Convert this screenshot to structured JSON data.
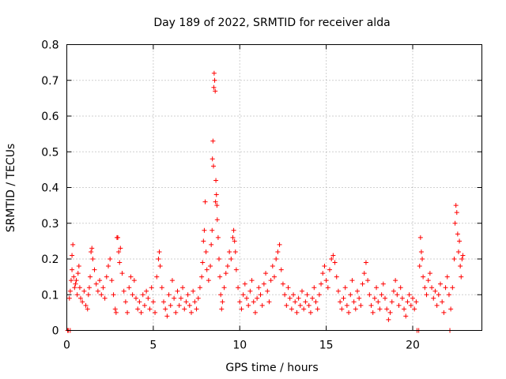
{
  "chart_data": {
    "type": "scatter",
    "title": "Day 189 of 2022, SRMTID for receiver alda",
    "xlabel": "GPS time / hours",
    "ylabel": "SRMTID / TECUs",
    "xlim": [
      0,
      24
    ],
    "ylim": [
      0,
      0.8
    ],
    "xticks": [
      0,
      5,
      10,
      15,
      20
    ],
    "yticks": [
      0,
      0.1,
      0.2,
      0.3,
      0.4,
      0.5,
      0.6,
      0.7,
      0.8
    ],
    "xtick_labels": [
      "0",
      "5",
      "10",
      "15",
      "20"
    ],
    "ytick_labels": [
      "0",
      "0.1",
      "0.2",
      "0.3",
      "0.4",
      "0.5",
      "0.6",
      "0.7",
      "0.8"
    ],
    "grid": true,
    "marker": "+",
    "color": "#ff0000",
    "series": [
      {
        "name": "SRMTID",
        "points": [
          [
            0.05,
            0.0
          ],
          [
            0.1,
            0.0
          ],
          [
            0.2,
            0.0
          ],
          [
            0.15,
            0.09
          ],
          [
            0.2,
            0.11
          ],
          [
            0.25,
            0.14
          ],
          [
            0.3,
            0.17
          ],
          [
            0.3,
            0.21
          ],
          [
            0.35,
            0.24
          ],
          [
            0.4,
            0.15
          ],
          [
            0.45,
            0.12
          ],
          [
            0.5,
            0.13
          ],
          [
            0.55,
            0.14
          ],
          [
            0.6,
            0.1
          ],
          [
            0.65,
            0.16
          ],
          [
            0.7,
            0.18
          ],
          [
            0.75,
            0.12
          ],
          [
            0.8,
            0.09
          ],
          [
            0.9,
            0.08
          ],
          [
            1.0,
            0.11
          ],
          [
            1.1,
            0.07
          ],
          [
            1.2,
            0.06
          ],
          [
            1.25,
            0.1
          ],
          [
            1.3,
            0.12
          ],
          [
            1.35,
            0.15
          ],
          [
            1.4,
            0.22
          ],
          [
            1.45,
            0.23
          ],
          [
            1.5,
            0.2
          ],
          [
            1.6,
            0.17
          ],
          [
            1.7,
            0.13
          ],
          [
            1.8,
            0.11
          ],
          [
            1.9,
            0.14
          ],
          [
            2.0,
            0.1
          ],
          [
            2.1,
            0.12
          ],
          [
            2.2,
            0.09
          ],
          [
            2.3,
            0.15
          ],
          [
            2.4,
            0.18
          ],
          [
            2.5,
            0.2
          ],
          [
            2.6,
            0.14
          ],
          [
            2.7,
            0.1
          ],
          [
            2.8,
            0.06
          ],
          [
            2.85,
            0.05
          ],
          [
            2.9,
            0.26
          ],
          [
            2.95,
            0.26
          ],
          [
            3.0,
            0.22
          ],
          [
            3.05,
            0.19
          ],
          [
            3.1,
            0.23
          ],
          [
            3.2,
            0.16
          ],
          [
            3.3,
            0.11
          ],
          [
            3.4,
            0.08
          ],
          [
            3.5,
            0.05
          ],
          [
            3.6,
            0.12
          ],
          [
            3.7,
            0.15
          ],
          [
            3.8,
            0.1
          ],
          [
            3.9,
            0.14
          ],
          [
            4.0,
            0.09
          ],
          [
            4.1,
            0.06
          ],
          [
            4.2,
            0.08
          ],
          [
            4.3,
            0.05
          ],
          [
            4.4,
            0.1
          ],
          [
            4.5,
            0.07
          ],
          [
            4.6,
            0.11
          ],
          [
            4.7,
            0.09
          ],
          [
            4.8,
            0.06
          ],
          [
            4.9,
            0.12
          ],
          [
            5.0,
            0.08
          ],
          [
            5.1,
            0.05
          ],
          [
            5.2,
            0.15
          ],
          [
            5.3,
            0.2
          ],
          [
            5.35,
            0.22
          ],
          [
            5.4,
            0.18
          ],
          [
            5.5,
            0.12
          ],
          [
            5.6,
            0.08
          ],
          [
            5.7,
            0.06
          ],
          [
            5.8,
            0.04
          ],
          [
            5.9,
            0.1
          ],
          [
            6.0,
            0.07
          ],
          [
            6.1,
            0.14
          ],
          [
            6.2,
            0.09
          ],
          [
            6.3,
            0.05
          ],
          [
            6.4,
            0.11
          ],
          [
            6.5,
            0.07
          ],
          [
            6.6,
            0.09
          ],
          [
            6.7,
            0.12
          ],
          [
            6.8,
            0.06
          ],
          [
            6.9,
            0.08
          ],
          [
            7.0,
            0.1
          ],
          [
            7.1,
            0.07
          ],
          [
            7.2,
            0.05
          ],
          [
            7.3,
            0.11
          ],
          [
            7.4,
            0.08
          ],
          [
            7.5,
            0.06
          ],
          [
            7.6,
            0.09
          ],
          [
            7.7,
            0.12
          ],
          [
            7.8,
            0.15
          ],
          [
            7.85,
            0.19
          ],
          [
            7.9,
            0.25
          ],
          [
            7.95,
            0.28
          ],
          [
            8.0,
            0.36
          ],
          [
            8.05,
            0.22
          ],
          [
            8.1,
            0.17
          ],
          [
            8.2,
            0.14
          ],
          [
            8.3,
            0.18
          ],
          [
            8.35,
            0.24
          ],
          [
            8.4,
            0.28
          ],
          [
            8.42,
            0.48
          ],
          [
            8.45,
            0.53
          ],
          [
            8.48,
            0.46
          ],
          [
            8.5,
            0.68
          ],
          [
            8.52,
            0.72
          ],
          [
            8.55,
            0.7
          ],
          [
            8.58,
            0.67
          ],
          [
            8.6,
            0.36
          ],
          [
            8.62,
            0.42
          ],
          [
            8.65,
            0.38
          ],
          [
            8.68,
            0.35
          ],
          [
            8.7,
            0.31
          ],
          [
            8.75,
            0.26
          ],
          [
            8.8,
            0.2
          ],
          [
            8.85,
            0.15
          ],
          [
            8.9,
            0.1
          ],
          [
            8.95,
            0.06
          ],
          [
            9.0,
            0.08
          ],
          [
            9.1,
            0.12
          ],
          [
            9.2,
            0.16
          ],
          [
            9.3,
            0.18
          ],
          [
            9.4,
            0.22
          ],
          [
            9.5,
            0.2
          ],
          [
            9.6,
            0.26
          ],
          [
            9.65,
            0.28
          ],
          [
            9.7,
            0.25
          ],
          [
            9.75,
            0.22
          ],
          [
            9.8,
            0.17
          ],
          [
            9.9,
            0.12
          ],
          [
            10.0,
            0.08
          ],
          [
            10.1,
            0.06
          ],
          [
            10.2,
            0.1
          ],
          [
            10.3,
            0.13
          ],
          [
            10.4,
            0.09
          ],
          [
            10.5,
            0.07
          ],
          [
            10.6,
            0.11
          ],
          [
            10.7,
            0.14
          ],
          [
            10.8,
            0.08
          ],
          [
            10.9,
            0.05
          ],
          [
            11.0,
            0.09
          ],
          [
            11.1,
            0.12
          ],
          [
            11.2,
            0.1
          ],
          [
            11.3,
            0.07
          ],
          [
            11.4,
            0.13
          ],
          [
            11.5,
            0.16
          ],
          [
            11.6,
            0.11
          ],
          [
            11.7,
            0.08
          ],
          [
            11.8,
            0.14
          ],
          [
            11.9,
            0.18
          ],
          [
            12.0,
            0.15
          ],
          [
            12.1,
            0.2
          ],
          [
            12.2,
            0.22
          ],
          [
            12.3,
            0.24
          ],
          [
            12.4,
            0.17
          ],
          [
            12.5,
            0.13
          ],
          [
            12.6,
            0.1
          ],
          [
            12.7,
            0.07
          ],
          [
            12.8,
            0.12
          ],
          [
            12.9,
            0.09
          ],
          [
            13.0,
            0.06
          ],
          [
            13.1,
            0.1
          ],
          [
            13.2,
            0.08
          ],
          [
            13.3,
            0.05
          ],
          [
            13.4,
            0.09
          ],
          [
            13.5,
            0.07
          ],
          [
            13.6,
            0.11
          ],
          [
            13.7,
            0.06
          ],
          [
            13.8,
            0.08
          ],
          [
            13.9,
            0.1
          ],
          [
            14.0,
            0.07
          ],
          [
            14.1,
            0.05
          ],
          [
            14.2,
            0.09
          ],
          [
            14.3,
            0.12
          ],
          [
            14.4,
            0.08
          ],
          [
            14.5,
            0.06
          ],
          [
            14.6,
            0.1
          ],
          [
            14.7,
            0.13
          ],
          [
            14.8,
            0.16
          ],
          [
            14.9,
            0.18
          ],
          [
            15.0,
            0.14
          ],
          [
            15.1,
            0.12
          ],
          [
            15.2,
            0.17
          ],
          [
            15.3,
            0.2
          ],
          [
            15.4,
            0.21
          ],
          [
            15.5,
            0.19
          ],
          [
            15.6,
            0.15
          ],
          [
            15.7,
            0.11
          ],
          [
            15.8,
            0.08
          ],
          [
            15.9,
            0.06
          ],
          [
            16.0,
            0.09
          ],
          [
            16.1,
            0.12
          ],
          [
            16.2,
            0.07
          ],
          [
            16.3,
            0.05
          ],
          [
            16.4,
            0.1
          ],
          [
            16.5,
            0.14
          ],
          [
            16.6,
            0.08
          ],
          [
            16.7,
            0.06
          ],
          [
            16.8,
            0.11
          ],
          [
            16.9,
            0.09
          ],
          [
            17.0,
            0.07
          ],
          [
            17.1,
            0.13
          ],
          [
            17.2,
            0.16
          ],
          [
            17.3,
            0.19
          ],
          [
            17.4,
            0.14
          ],
          [
            17.5,
            0.1
          ],
          [
            17.6,
            0.07
          ],
          [
            17.7,
            0.05
          ],
          [
            17.8,
            0.09
          ],
          [
            17.9,
            0.12
          ],
          [
            18.0,
            0.08
          ],
          [
            18.1,
            0.06
          ],
          [
            18.2,
            0.1
          ],
          [
            18.3,
            0.13
          ],
          [
            18.4,
            0.09
          ],
          [
            18.5,
            0.06
          ],
          [
            18.6,
            0.03
          ],
          [
            18.7,
            0.05
          ],
          [
            18.8,
            0.08
          ],
          [
            18.9,
            0.11
          ],
          [
            19.0,
            0.14
          ],
          [
            19.1,
            0.1
          ],
          [
            19.2,
            0.07
          ],
          [
            19.3,
            0.12
          ],
          [
            19.4,
            0.09
          ],
          [
            19.5,
            0.06
          ],
          [
            19.6,
            0.04
          ],
          [
            19.7,
            0.08
          ],
          [
            19.8,
            0.1
          ],
          [
            19.9,
            0.07
          ],
          [
            20.0,
            0.09
          ],
          [
            20.1,
            0.06
          ],
          [
            20.2,
            0.08
          ],
          [
            20.25,
            0.0
          ],
          [
            20.35,
            0.0
          ],
          [
            20.4,
            0.18
          ],
          [
            20.45,
            0.26
          ],
          [
            20.5,
            0.22
          ],
          [
            20.55,
            0.2
          ],
          [
            20.6,
            0.15
          ],
          [
            20.7,
            0.12
          ],
          [
            20.8,
            0.1
          ],
          [
            20.9,
            0.14
          ],
          [
            21.0,
            0.16
          ],
          [
            21.1,
            0.12
          ],
          [
            21.2,
            0.09
          ],
          [
            21.3,
            0.11
          ],
          [
            21.4,
            0.07
          ],
          [
            21.5,
            0.1
          ],
          [
            21.6,
            0.13
          ],
          [
            21.7,
            0.08
          ],
          [
            21.8,
            0.05
          ],
          [
            21.9,
            0.12
          ],
          [
            22.0,
            0.15
          ],
          [
            22.1,
            0.1
          ],
          [
            22.15,
            0.0
          ],
          [
            22.2,
            0.06
          ],
          [
            22.3,
            0.12
          ],
          [
            22.4,
            0.2
          ],
          [
            22.45,
            0.3
          ],
          [
            22.5,
            0.35
          ],
          [
            22.55,
            0.33
          ],
          [
            22.6,
            0.27
          ],
          [
            22.65,
            0.22
          ],
          [
            22.7,
            0.25
          ],
          [
            22.75,
            0.18
          ],
          [
            22.8,
            0.15
          ],
          [
            22.85,
            0.2
          ],
          [
            22.9,
            0.21
          ]
        ]
      }
    ]
  }
}
